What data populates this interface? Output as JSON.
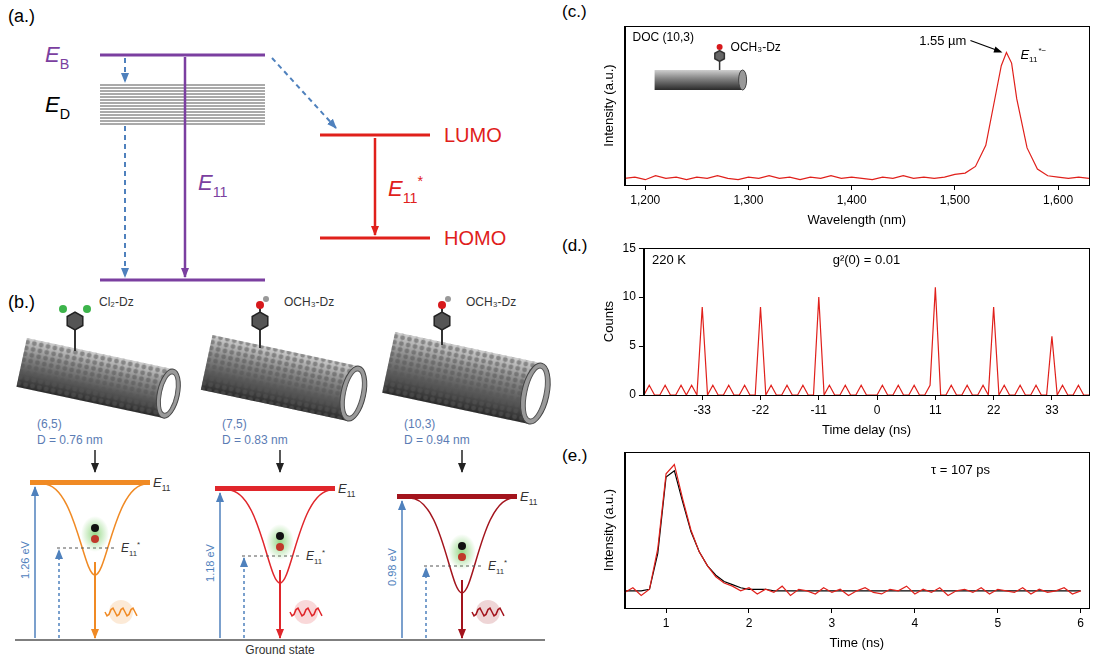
{
  "diagram": {
    "a": {
      "panel_label": "(a.)",
      "bright_level": {
        "text": "E",
        "sub": "B"
      },
      "dark_levels": {
        "text": "E",
        "sub": "D"
      },
      "bright_transition": {
        "text": "E",
        "sub": "11"
      },
      "lumo": "LUMO",
      "homo": "HOMO",
      "defect_transition": {
        "text": "E",
        "sub": "11",
        "sup": "*"
      }
    },
    "b": {
      "panel_label": "(b.)",
      "tubes": [
        {
          "group": "Cl₂-Dz",
          "chirality": "(6,5)",
          "diameter": "D = 0.76 nm",
          "gap": "1.26 eV"
        },
        {
          "group": "OCH₃-Dz",
          "chirality": "(7,5)",
          "diameter": "D = 0.83 nm",
          "gap": "1.18 eV"
        },
        {
          "group": "OCH₃-Dz",
          "chirality": "(10,3)",
          "diameter": "D = 0.94 nm",
          "gap": "0.98 eV"
        }
      ],
      "bright_label": {
        "text": "E",
        "sub": "11"
      },
      "defect_label": {
        "text": "E",
        "sub": "11",
        "sup": "*"
      },
      "ground": "Ground state"
    }
  },
  "chart_data": [
    {
      "type": "line",
      "panel_label": "(c.)",
      "x_label": "Wavelength (nm)",
      "y_label": "Intensity (a.u.)",
      "x": [
        1180,
        1190,
        1200,
        1210,
        1220,
        1230,
        1240,
        1250,
        1260,
        1270,
        1280,
        1290,
        1300,
        1310,
        1320,
        1330,
        1340,
        1350,
        1360,
        1370,
        1380,
        1390,
        1400,
        1410,
        1420,
        1430,
        1440,
        1450,
        1460,
        1470,
        1480,
        1490,
        1500,
        1510,
        1520,
        1530,
        1540,
        1545,
        1550,
        1555,
        1560,
        1570,
        1580,
        1590,
        1600,
        1610,
        1620,
        1630
      ],
      "series": [
        {
          "color": "#e0201b",
          "values": [
            0.05,
            0.06,
            0.04,
            0.07,
            0.05,
            0.06,
            0.04,
            0.06,
            0.05,
            0.07,
            0.05,
            0.04,
            0.06,
            0.05,
            0.07,
            0.05,
            0.06,
            0.04,
            0.06,
            0.05,
            0.07,
            0.05,
            0.06,
            0.05,
            0.04,
            0.06,
            0.05,
            0.07,
            0.05,
            0.06,
            0.05,
            0.06,
            0.08,
            0.09,
            0.14,
            0.3,
            0.7,
            0.9,
            1.0,
            0.92,
            0.65,
            0.28,
            0.12,
            0.07,
            0.06,
            0.05,
            0.06,
            0.05
          ]
        }
      ],
      "xlim": [
        1180,
        1630
      ],
      "xticks": [
        {
          "value": 1200,
          "label": "1,200"
        },
        {
          "value": 1300,
          "label": "1,300"
        },
        {
          "value": 1400,
          "label": "1,400"
        },
        {
          "value": 1500,
          "label": "1,500"
        },
        {
          "value": 1600,
          "label": "1,600"
        }
      ],
      "ylim": [
        0,
        1.2
      ],
      "grid": false,
      "tick_labels": "x",
      "annotations": {
        "sample": "DOC (10,3)",
        "group": "OCH₃-Dz",
        "peak": "1.55 µm",
        "peak_state": {
          "text": "E",
          "sub": "11",
          "sup": "*−"
        }
      }
    },
    {
      "type": "line",
      "panel_label": "(d.)",
      "x_label": "Time delay (ns)",
      "y_label": "Counts",
      "x": [
        -44,
        -43,
        -42,
        -41,
        -40,
        -39,
        -38,
        -37,
        -36,
        -35,
        -34,
        -33,
        -32,
        -31,
        -30,
        -29,
        -28,
        -27,
        -26,
        -25,
        -24,
        -23,
        -22,
        -21,
        -20,
        -19,
        -18,
        -17,
        -16,
        -15,
        -14,
        -13,
        -12,
        -11,
        -10,
        -9,
        -8,
        -7,
        -6,
        -5,
        -4,
        -3,
        -2,
        -1,
        0,
        1,
        2,
        3,
        4,
        5,
        6,
        7,
        8,
        9,
        10,
        11,
        12,
        13,
        14,
        15,
        16,
        17,
        18,
        19,
        20,
        21,
        22,
        23,
        24,
        25,
        26,
        27,
        28,
        29,
        30,
        31,
        32,
        33,
        34,
        35,
        36,
        37,
        38,
        39,
        40
      ],
      "series": [
        {
          "color": "#e0201b",
          "values": [
            0,
            1,
            0,
            0,
            1,
            0,
            0,
            1,
            0,
            1,
            0,
            9,
            0,
            1,
            0,
            0,
            1,
            0,
            0,
            1,
            0,
            0,
            9,
            0,
            1,
            0,
            0,
            1,
            0,
            0,
            1,
            0,
            0,
            10,
            0,
            1,
            0,
            0,
            1,
            0,
            0,
            1,
            0,
            0,
            0,
            1,
            0,
            0,
            1,
            0,
            0,
            1,
            0,
            0,
            1,
            11,
            0,
            0,
            1,
            0,
            0,
            1,
            0,
            0,
            1,
            0,
            9,
            0,
            1,
            0,
            0,
            1,
            0,
            0,
            1,
            0,
            0,
            6,
            0,
            1,
            0,
            0,
            1,
            0,
            0
          ]
        }
      ],
      "xlim": [
        -44,
        40
      ],
      "xticks": [
        -33,
        -22,
        -11,
        0,
        11,
        22,
        33
      ],
      "ylim": [
        0,
        15
      ],
      "yticks": [
        0,
        5,
        10,
        15
      ],
      "grid": false,
      "annotations": {
        "temperature": "220 K",
        "g2": "g²(0) = 0.01"
      }
    },
    {
      "type": "line",
      "panel_label": "(e.)",
      "x_label": "Time (ns)",
      "y_label": "Intensity (a.u.)",
      "x": [
        0.5,
        0.6,
        0.7,
        0.8,
        0.9,
        1.0,
        1.1,
        1.2,
        1.3,
        1.4,
        1.5,
        1.6,
        1.7,
        1.8,
        1.9,
        2.0,
        2.1,
        2.2,
        2.3,
        2.4,
        2.5,
        2.6,
        2.7,
        2.8,
        2.9,
        3.0,
        3.1,
        3.2,
        3.3,
        3.4,
        3.5,
        3.6,
        3.7,
        3.8,
        3.9,
        4.0,
        4.1,
        4.2,
        4.3,
        4.4,
        4.5,
        4.6,
        4.7,
        4.8,
        4.9,
        5.0,
        5.1,
        5.2,
        5.3,
        5.4,
        5.5,
        5.6,
        5.7,
        5.8,
        5.9,
        6.0
      ],
      "series": [
        {
          "color": "#e0201b",
          "values": [
            0.1,
            0.13,
            0.08,
            0.12,
            0.38,
            0.86,
            0.92,
            0.7,
            0.5,
            0.36,
            0.27,
            0.2,
            0.16,
            0.14,
            0.11,
            0.13,
            0.09,
            0.12,
            0.1,
            0.14,
            0.08,
            0.12,
            0.11,
            0.09,
            0.13,
            0.1,
            0.12,
            0.08,
            0.11,
            0.13,
            0.1,
            0.09,
            0.12,
            0.11,
            0.14,
            0.09,
            0.12,
            0.1,
            0.13,
            0.08,
            0.11,
            0.12,
            0.1,
            0.13,
            0.09,
            0.12,
            0.11,
            0.1,
            0.13,
            0.09,
            0.12,
            0.1,
            0.11,
            0.13,
            0.09,
            0.11
          ]
        },
        {
          "color": "#000000",
          "values": [
            0.11,
            0.11,
            0.11,
            0.12,
            0.35,
            0.84,
            0.88,
            0.68,
            0.49,
            0.36,
            0.27,
            0.21,
            0.17,
            0.15,
            0.13,
            0.12,
            0.12,
            0.12,
            0.11,
            0.11,
            0.11,
            0.11,
            0.11,
            0.11,
            0.11,
            0.11,
            0.11,
            0.11,
            0.11,
            0.11,
            0.11,
            0.11,
            0.11,
            0.11,
            0.11,
            0.11,
            0.11,
            0.11,
            0.11,
            0.11,
            0.11,
            0.11,
            0.11,
            0.11,
            0.11,
            0.11,
            0.11,
            0.11,
            0.11,
            0.11,
            0.11,
            0.11,
            0.11,
            0.11,
            0.11,
            0.11
          ]
        }
      ],
      "xlim": [
        0.5,
        6.1
      ],
      "xticks": [
        1,
        2,
        3,
        4,
        5,
        6
      ],
      "ylim": [
        0,
        1
      ],
      "grid": false,
      "tick_labels": "x",
      "annotations": {
        "lifetime": "τ = 107 ps"
      }
    }
  ]
}
